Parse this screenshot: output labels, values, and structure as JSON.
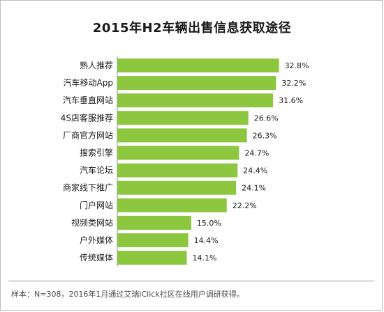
{
  "chart_data": {
    "type": "bar",
    "orientation": "horizontal",
    "title": "2015年H2车辆出售信息获取途径",
    "categories": [
      "熟人推荐",
      "汽车移动App",
      "汽车垂直网站",
      "4S店客服推荐",
      "厂商官方网站",
      "搜索引擎",
      "汽车论坛",
      "商家线下推广",
      "门户网站",
      "视频类网站",
      "户外媒体",
      "传统媒体"
    ],
    "values": [
      32.8,
      32.2,
      31.6,
      26.6,
      26.3,
      24.7,
      24.4,
      24.1,
      22.2,
      15.0,
      14.4,
      14.1
    ],
    "data_labels": [
      "32.8%",
      "32.2%",
      "31.6%",
      "26.6%",
      "26.3%",
      "24.7%",
      "24.4%",
      "24.1%",
      "22.2%",
      "15.0%",
      "14.4%",
      "14.1%"
    ],
    "unit": "%",
    "bar_color": "#8dc63f",
    "grid": false,
    "legend": "none"
  },
  "footnote": "样本：N=308，2016年1月通过艾瑞iClick社区在线用户调研获得。"
}
